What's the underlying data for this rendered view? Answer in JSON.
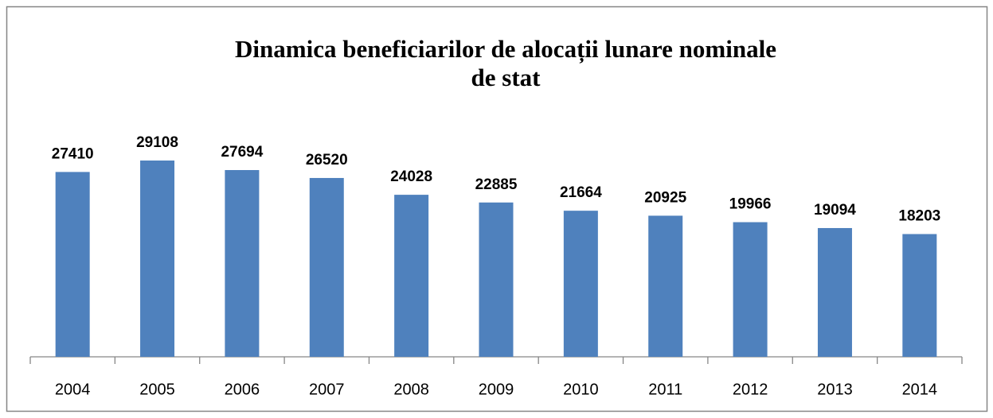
{
  "chart_data": {
    "type": "bar",
    "title": "Dinamica beneficiarilor de alocații lunare nominale de stat",
    "categories": [
      "2004",
      "2005",
      "2006",
      "2007",
      "2008",
      "2009",
      "2010",
      "2011",
      "2012",
      "2013",
      "2014"
    ],
    "values": [
      27410,
      29108,
      27694,
      26520,
      24028,
      22885,
      21664,
      20925,
      19966,
      19094,
      18203
    ],
    "color": "#4f81bd",
    "ylim": [
      0,
      35000
    ]
  }
}
